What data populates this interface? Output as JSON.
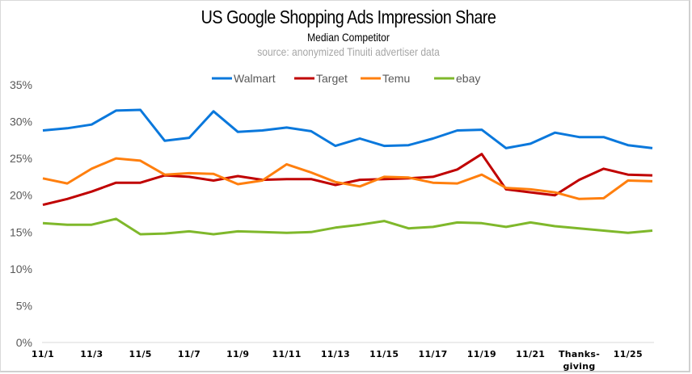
{
  "chart_data": {
    "type": "line",
    "title": "US Google Shopping Ads Impression Share",
    "subtitle": "Median Competitor",
    "source": "source: anonymized Tinuiti advertiser data",
    "xlabel": "",
    "ylabel": "",
    "ylim": [
      0,
      35
    ],
    "yticks": [
      0,
      5,
      10,
      15,
      20,
      25,
      30,
      35
    ],
    "ytick_labels": [
      "0%",
      "5%",
      "10%",
      "15%",
      "20%",
      "25%",
      "30%",
      "35%"
    ],
    "grid": false,
    "legend": "top",
    "x": [
      "11/1",
      "11/2",
      "11/3",
      "11/4",
      "11/5",
      "11/6",
      "11/7",
      "11/8",
      "11/9",
      "11/10",
      "11/11",
      "11/12",
      "11/13",
      "11/14",
      "11/15",
      "11/16",
      "11/17",
      "11/18",
      "11/19",
      "11/20",
      "11/21",
      "11/22",
      "Thanksgiving",
      "11/24",
      "11/25",
      "11/26"
    ],
    "xtick_labels": [
      {
        "index": 0,
        "label": "11/1"
      },
      {
        "index": 2,
        "label": "11/3"
      },
      {
        "index": 4,
        "label": "11/5"
      },
      {
        "index": 6,
        "label": "11/7"
      },
      {
        "index": 8,
        "label": "11/9"
      },
      {
        "index": 10,
        "label": "11/11"
      },
      {
        "index": 12,
        "label": "11/13"
      },
      {
        "index": 14,
        "label": "11/15"
      },
      {
        "index": 16,
        "label": "11/17"
      },
      {
        "index": 18,
        "label": "11/19"
      },
      {
        "index": 20,
        "label": "11/21"
      },
      {
        "index": 22,
        "label": "Thanks-",
        "label2": "giving"
      },
      {
        "index": 24,
        "label": "11/25"
      }
    ],
    "series": [
      {
        "name": "Walmart",
        "color": "#0a78dc",
        "values": [
          28.8,
          29.1,
          29.6,
          31.5,
          31.6,
          27.4,
          27.8,
          31.4,
          28.6,
          28.8,
          29.2,
          28.7,
          26.7,
          27.7,
          26.7,
          26.8,
          27.7,
          28.8,
          28.9,
          26.4,
          27.0,
          28.5,
          27.9,
          27.9,
          26.8,
          26.4
        ]
      },
      {
        "name": "Target",
        "color": "#c00000",
        "values": [
          18.7,
          19.5,
          20.5,
          21.7,
          21.7,
          22.7,
          22.5,
          22.0,
          22.6,
          22.1,
          22.2,
          22.2,
          21.4,
          22.1,
          22.2,
          22.3,
          22.5,
          23.5,
          25.6,
          20.8,
          20.4,
          20.0,
          22.1,
          23.6,
          22.8,
          22.7
        ]
      },
      {
        "name": "Temu",
        "color": "#ff7f0e",
        "values": [
          22.3,
          21.6,
          23.6,
          25.0,
          24.7,
          22.8,
          23.0,
          22.9,
          21.5,
          22.0,
          24.2,
          23.1,
          21.8,
          21.2,
          22.5,
          22.4,
          21.7,
          21.6,
          22.8,
          21.0,
          20.8,
          20.4,
          19.5,
          19.6,
          22.0,
          21.9
        ]
      },
      {
        "name": "ebay",
        "color": "#7fb82b",
        "values": [
          16.2,
          16.0,
          16.0,
          16.8,
          14.7,
          14.8,
          15.1,
          14.7,
          15.1,
          15.0,
          14.9,
          15.0,
          15.6,
          16.0,
          16.5,
          15.5,
          15.7,
          16.3,
          16.2,
          15.7,
          16.3,
          15.8,
          15.5,
          15.2,
          14.9,
          15.2
        ]
      }
    ]
  }
}
